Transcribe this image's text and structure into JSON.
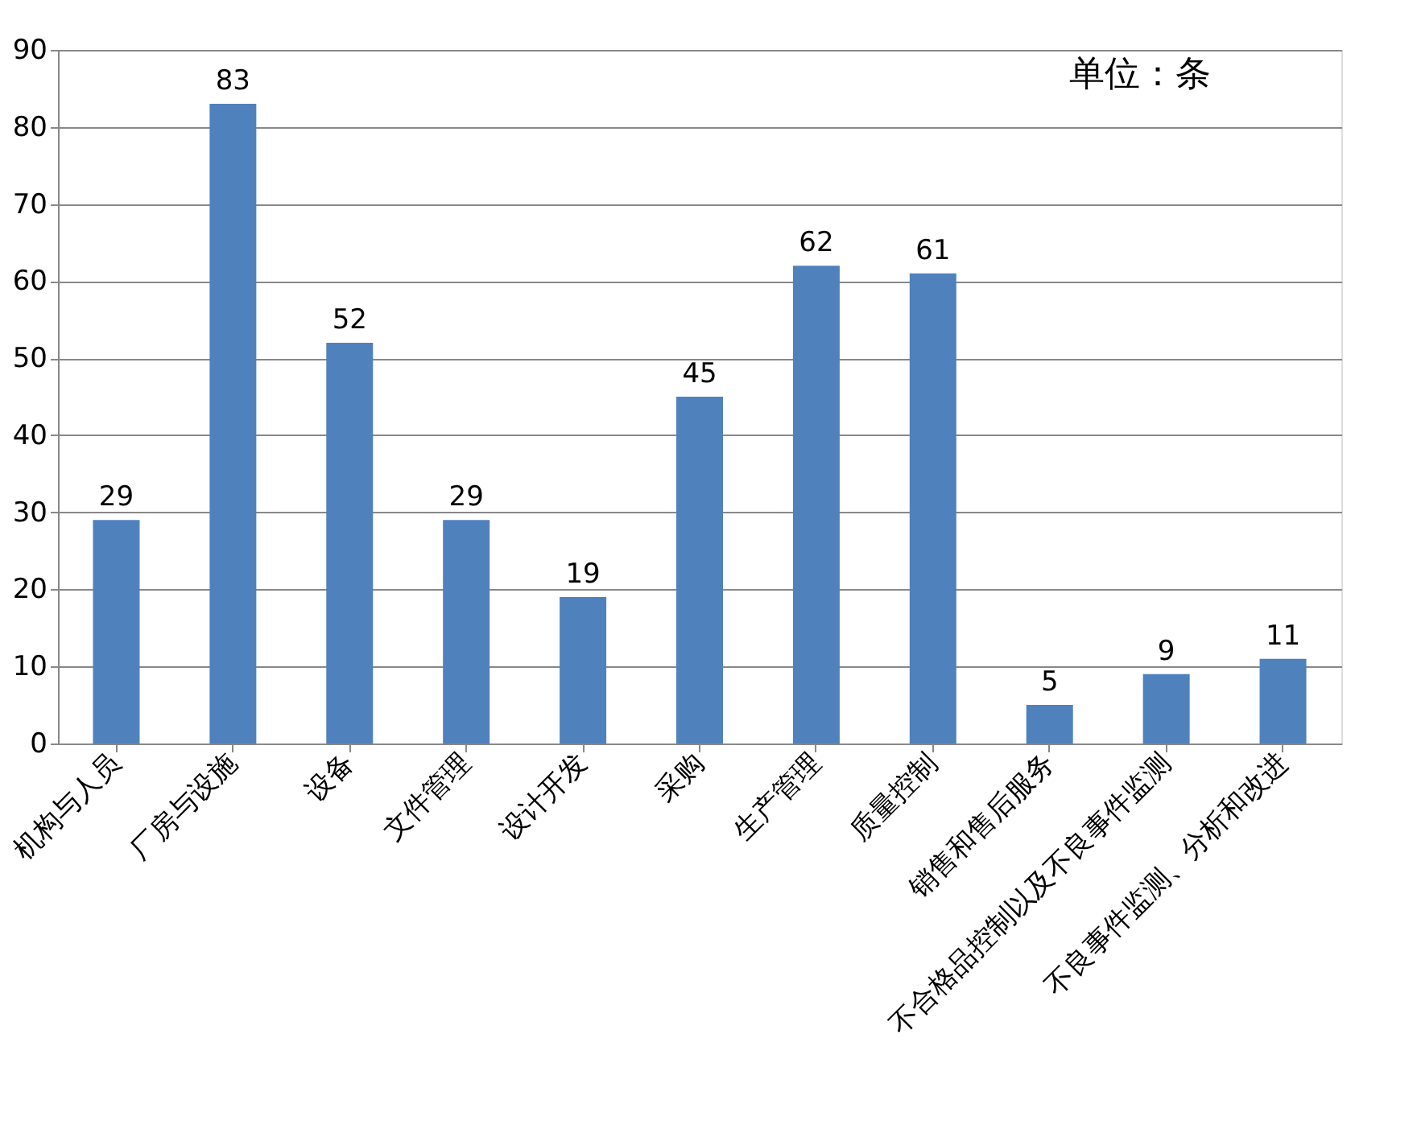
{
  "chart_data": {
    "type": "bar",
    "categories": [
      "机构与人员",
      "厂房与设施",
      "设备",
      "文件管理",
      "设计开发",
      "采购",
      "生产管理",
      "质量控制",
      "销售和售后服务",
      "不合格品控制以及不良事件监测",
      "不良事件监测、分析和改进"
    ],
    "values": [
      29,
      83,
      52,
      29,
      19,
      45,
      62,
      61,
      5,
      9,
      11
    ],
    "color": "#4f81bd",
    "ylim": [
      0,
      90
    ],
    "yticks": [
      0,
      10,
      20,
      30,
      40,
      50,
      60,
      70,
      80,
      90
    ],
    "grid": "y",
    "data_labels": true,
    "annotations": [
      "单位：条"
    ]
  }
}
